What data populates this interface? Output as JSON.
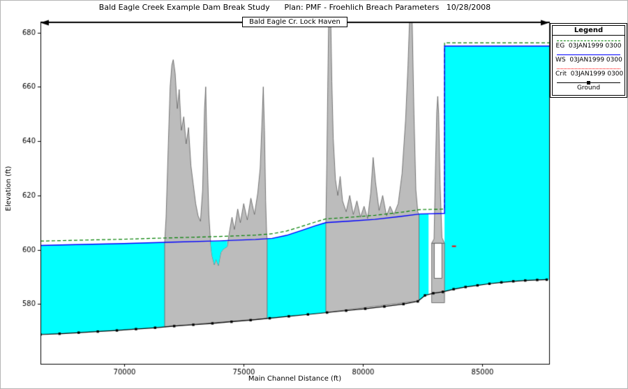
{
  "legend": {
    "title": "Legend",
    "entries": [
      {
        "label": "EG  03JAN1999 0300",
        "style": "dashed",
        "color": "#008000"
      },
      {
        "label": "WS  03JAN1999 0300",
        "style": "solid",
        "color": "#0000ff"
      },
      {
        "label": "Crit  03JAN1999 0300",
        "style": "dotted",
        "color": "#ff0000"
      },
      {
        "label": "Ground",
        "style": "marker",
        "color": "#000000"
      }
    ]
  },
  "chart_data": {
    "type": "area",
    "title": "Bald Eagle Creek Example Dam Break Study      Plan: PMF - Froehlich Breach Parameters   10/28/2008",
    "banner_label": "Bald Eagle Cr. Lock Haven",
    "xlabel": "Main Channel Distance (ft)",
    "ylabel": "Elevation (ft)",
    "xlim": [
      66500,
      87800
    ],
    "ylim": [
      558,
      684
    ],
    "x_ticks": [
      70000,
      75000,
      80000,
      85000
    ],
    "y_ticks": [
      580,
      600,
      620,
      640,
      660,
      680
    ],
    "grid": false,
    "legend_position": "top-right-outside",
    "colors": {
      "water": "#00ffff",
      "terrain": "#bcbcbc",
      "terrain_edge": "#5a5a5a",
      "eg": "#008000",
      "ws": "#0000ff",
      "ground": "#000000",
      "crit_marker": "#ff0000",
      "axis": "#000000"
    },
    "series": {
      "eg": {
        "name": "EG 03JAN1999 0300",
        "points": [
          [
            66500,
            603.2
          ],
          [
            68000,
            603.5
          ],
          [
            70000,
            603.9
          ],
          [
            72000,
            604.4
          ],
          [
            74000,
            604.9
          ],
          [
            75500,
            605.4
          ],
          [
            76200,
            605.9
          ],
          [
            76800,
            606.9
          ],
          [
            77400,
            608.5
          ],
          [
            78000,
            610.2
          ],
          [
            78450,
            611.4
          ],
          [
            79500,
            612.0
          ],
          [
            80500,
            612.7
          ],
          [
            81500,
            613.7
          ],
          [
            82400,
            614.8
          ],
          [
            83420,
            615.0
          ],
          [
            83420,
            676.2
          ],
          [
            87800,
            676.2
          ]
        ]
      },
      "ws": {
        "name": "WS 03JAN1999 0300",
        "points": [
          [
            66500,
            601.6
          ],
          [
            68000,
            601.9
          ],
          [
            70000,
            602.3
          ],
          [
            72000,
            602.8
          ],
          [
            74000,
            603.3
          ],
          [
            75500,
            603.8
          ],
          [
            76200,
            604.2
          ],
          [
            76800,
            605.3
          ],
          [
            77400,
            607.0
          ],
          [
            78000,
            608.8
          ],
          [
            78450,
            610.0
          ],
          [
            79500,
            610.6
          ],
          [
            80500,
            611.2
          ],
          [
            81500,
            612.2
          ],
          [
            82400,
            613.2
          ],
          [
            83420,
            613.4
          ],
          [
            83420,
            675.0
          ],
          [
            87800,
            675.0
          ]
        ]
      },
      "ground": {
        "name": "Ground",
        "markers": true,
        "points": [
          [
            66500,
            568.8
          ],
          [
            67300,
            569.1
          ],
          [
            68100,
            569.5
          ],
          [
            68900,
            569.9
          ],
          [
            69700,
            570.3
          ],
          [
            70500,
            570.8
          ],
          [
            71300,
            571.3
          ],
          [
            72100,
            571.9
          ],
          [
            72900,
            572.4
          ],
          [
            73700,
            572.9
          ],
          [
            74500,
            573.5
          ],
          [
            75300,
            574.1
          ],
          [
            76100,
            574.8
          ],
          [
            76900,
            575.5
          ],
          [
            77700,
            576.2
          ],
          [
            78500,
            576.9
          ],
          [
            79300,
            577.6
          ],
          [
            80100,
            578.3
          ],
          [
            80900,
            579.1
          ],
          [
            81700,
            580.0
          ],
          [
            82300,
            581.0
          ],
          [
            82600,
            583.2
          ],
          [
            82950,
            584.0
          ],
          [
            83350,
            584.5
          ],
          [
            83800,
            585.5
          ],
          [
            84300,
            586.3
          ],
          [
            84800,
            586.9
          ],
          [
            85300,
            587.5
          ],
          [
            85800,
            588.0
          ],
          [
            86300,
            588.4
          ],
          [
            86800,
            588.7
          ],
          [
            87300,
            588.9
          ],
          [
            87700,
            589.0
          ]
        ]
      }
    },
    "water_polygons": [
      {
        "name": "downstream-reach-water",
        "points": [
          [
            66500,
            601.6
          ],
          [
            68000,
            601.9
          ],
          [
            70000,
            602.3
          ],
          [
            71700,
            602.7
          ],
          [
            71700,
            571.7
          ],
          [
            70500,
            570.8
          ],
          [
            69700,
            570.3
          ],
          [
            68900,
            569.9
          ],
          [
            68100,
            569.5
          ],
          [
            67300,
            569.1
          ],
          [
            66500,
            568.8
          ]
        ]
      },
      {
        "name": "mid-reach-water",
        "points": [
          [
            75990,
            604.1
          ],
          [
            76200,
            604.2
          ],
          [
            76800,
            605.3
          ],
          [
            77400,
            607.0
          ],
          [
            78000,
            608.8
          ],
          [
            78450,
            610.0
          ],
          [
            78450,
            576.9
          ],
          [
            77700,
            576.2
          ],
          [
            76900,
            575.5
          ],
          [
            76100,
            574.8
          ],
          [
            75990,
            574.7
          ]
        ]
      },
      {
        "name": "tailwater-sliver",
        "points": [
          [
            82350,
            613.1
          ],
          [
            82750,
            613.3
          ],
          [
            82750,
            583.5
          ],
          [
            82600,
            583.2
          ],
          [
            82350,
            581.2
          ]
        ]
      },
      {
        "name": "reservoir-pool",
        "points": [
          [
            83420,
            675.0
          ],
          [
            87800,
            675.0
          ],
          [
            87800,
            589.0
          ],
          [
            87300,
            588.9
          ],
          [
            86800,
            588.7
          ],
          [
            86300,
            588.4
          ],
          [
            85800,
            588.0
          ],
          [
            85300,
            587.5
          ],
          [
            84800,
            586.9
          ],
          [
            84300,
            586.3
          ],
          [
            83800,
            585.5
          ],
          [
            83420,
            584.6
          ]
        ]
      }
    ],
    "water_overlays": [
      {
        "name": "channel-notch-water",
        "points": [
          [
            73630,
            603.0
          ],
          [
            74320,
            603.3
          ],
          [
            74320,
            601.2
          ],
          [
            74150,
            600.2
          ],
          [
            74050,
            599.0
          ],
          [
            73950,
            594.2
          ],
          [
            73850,
            596.5
          ],
          [
            73780,
            594.5
          ],
          [
            73680,
            598.0
          ],
          [
            73630,
            602.0
          ]
        ]
      }
    ],
    "terrain_polygons": [
      {
        "name": "terrain-block-left",
        "points": [
          [
            71700,
            602.7
          ],
          [
            71760,
            612
          ],
          [
            71850,
            638
          ],
          [
            71930,
            660
          ],
          [
            72000,
            668
          ],
          [
            72060,
            670
          ],
          [
            72140,
            665
          ],
          [
            72230,
            652
          ],
          [
            72310,
            659
          ],
          [
            72400,
            644
          ],
          [
            72500,
            649
          ],
          [
            72600,
            639
          ],
          [
            72700,
            645
          ],
          [
            72800,
            631
          ],
          [
            72900,
            624
          ],
          [
            73000,
            617
          ],
          [
            73100,
            612.5
          ],
          [
            73200,
            610.5
          ],
          [
            73290,
            622
          ],
          [
            73370,
            652
          ],
          [
            73420,
            660
          ],
          [
            73470,
            638
          ],
          [
            73550,
            613
          ],
          [
            73630,
            602
          ],
          [
            73680,
            598
          ],
          [
            73780,
            594.5
          ],
          [
            73850,
            596.5
          ],
          [
            73950,
            594.2
          ],
          [
            74050,
            599
          ],
          [
            74150,
            600.2
          ],
          [
            74320,
            601.2
          ],
          [
            74420,
            607
          ],
          [
            74520,
            612
          ],
          [
            74620,
            607.5
          ],
          [
            74760,
            615
          ],
          [
            74870,
            610
          ],
          [
            75010,
            617
          ],
          [
            75160,
            611
          ],
          [
            75310,
            619
          ],
          [
            75460,
            613
          ],
          [
            75600,
            621
          ],
          [
            75700,
            630
          ],
          [
            75780,
            648
          ],
          [
            75830,
            660
          ],
          [
            75880,
            644
          ],
          [
            75930,
            618
          ],
          [
            75970,
            606
          ],
          [
            75990,
            604.1
          ],
          [
            75990,
            574.7
          ],
          [
            71700,
            571.7
          ]
        ]
      },
      {
        "name": "terrain-block-right",
        "points": [
          [
            78450,
            610.0
          ],
          [
            78490,
            632
          ],
          [
            78530,
            660
          ],
          [
            78570,
            686
          ],
          [
            78610,
            694
          ],
          [
            78650,
            688
          ],
          [
            78700,
            662
          ],
          [
            78760,
            641
          ],
          [
            78850,
            626
          ],
          [
            78950,
            620
          ],
          [
            79050,
            627
          ],
          [
            79150,
            618
          ],
          [
            79300,
            614
          ],
          [
            79450,
            620
          ],
          [
            79600,
            613
          ],
          [
            79750,
            618
          ],
          [
            79900,
            612
          ],
          [
            80050,
            616
          ],
          [
            80200,
            611.5
          ],
          [
            80330,
            621
          ],
          [
            80430,
            634
          ],
          [
            80530,
            625
          ],
          [
            80680,
            614.5
          ],
          [
            80830,
            620
          ],
          [
            80990,
            612.5
          ],
          [
            81140,
            616
          ],
          [
            81300,
            613
          ],
          [
            81480,
            617
          ],
          [
            81640,
            628
          ],
          [
            81790,
            648
          ],
          [
            81890,
            668
          ],
          [
            81960,
            686
          ],
          [
            82020,
            694
          ],
          [
            82070,
            682
          ],
          [
            82140,
            650
          ],
          [
            82220,
            622
          ],
          [
            82300,
            614
          ],
          [
            82350,
            613.1
          ],
          [
            82350,
            581.2
          ],
          [
            78450,
            576.9
          ]
        ]
      },
      {
        "name": "dam-body",
        "points": [
          [
            82880,
            602.4
          ],
          [
            83420,
            602.4
          ],
          [
            83420,
            580.5
          ],
          [
            82880,
            580.5
          ]
        ]
      },
      {
        "name": "dam-crest-tower",
        "points": [
          [
            82880,
            602.4
          ],
          [
            82980,
            604.0
          ],
          [
            83040,
            630
          ],
          [
            83095,
            651
          ],
          [
            83135,
            656.5
          ],
          [
            83175,
            650
          ],
          [
            83235,
            624
          ],
          [
            83310,
            604.5
          ],
          [
            83420,
            602.4
          ]
        ]
      }
    ],
    "structures": {
      "gate_opening": {
        "name": "breach-opening",
        "points": [
          [
            82990,
            602.4
          ],
          [
            83310,
            602.4
          ],
          [
            83310,
            589.5
          ],
          [
            82990,
            589.5
          ]
        ]
      }
    },
    "crit_marker": {
      "points": [
        [
          83730,
          601.3
        ],
        [
          83900,
          601.3
        ]
      ]
    }
  }
}
